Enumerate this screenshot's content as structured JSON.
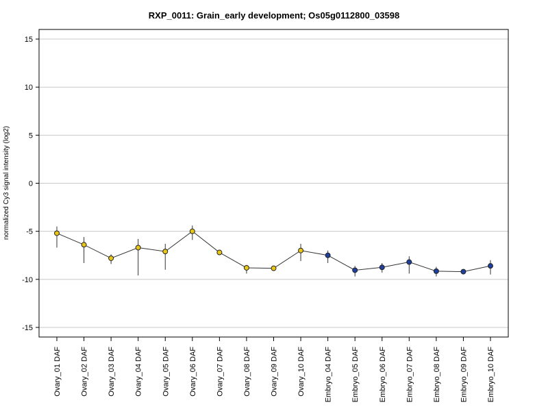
{
  "chart_data": {
    "type": "line",
    "title": "RXP_0011: Grain_early development; Os05g0112800_03598",
    "xlabel": "",
    "ylabel": "normalized Cy3 signal intensity (log2)",
    "ylim": [
      -16,
      16
    ],
    "yticks": [
      -15,
      -10,
      -5,
      0,
      5,
      10,
      15
    ],
    "grid": "horizontal",
    "categories": [
      "Ovary_01 DAF",
      "Ovary_02 DAF",
      "Ovary_03 DAF",
      "Ovary_04 DAF",
      "Ovary_05 DAF",
      "Ovary_06 DAF",
      "Ovary_07 DAF",
      "Ovary_08 DAF",
      "Ovary_09 DAF",
      "Ovary_10 DAF",
      "Embryo_04 DAF",
      "Embryo_05 DAF",
      "Embryo_06 DAF",
      "Embryo_07 DAF",
      "Embryo_08 DAF",
      "Embryo_09 DAF",
      "Embryo_10 DAF"
    ],
    "values": [
      -5.2,
      -6.4,
      -7.8,
      -6.7,
      -7.1,
      -5.0,
      -7.2,
      -8.8,
      -8.85,
      -7.0,
      -7.5,
      -9.05,
      -8.75,
      -8.2,
      -9.15,
      -9.2,
      -8.6
    ],
    "error_low": [
      -6.7,
      -8.3,
      -8.4,
      -9.6,
      -9.0,
      -5.9,
      -7.3,
      -9.4,
      -8.9,
      -8.1,
      -8.3,
      -9.7,
      -9.3,
      -9.4,
      -9.7,
      -9.3,
      -9.5
    ],
    "error_high": [
      -4.5,
      -5.6,
      -7.4,
      -5.8,
      -6.3,
      -4.4,
      -7.0,
      -8.5,
      -8.8,
      -6.3,
      -7.0,
      -8.6,
      -8.3,
      -7.6,
      -8.7,
      -9.1,
      -8.0
    ],
    "point_colors": [
      "#e6c619",
      "#e6c619",
      "#e6c619",
      "#e6c619",
      "#e6c619",
      "#e6c619",
      "#e6c619",
      "#e6c619",
      "#e6c619",
      "#e6c619",
      "#1f3f9e",
      "#1f3f9e",
      "#1f3f9e",
      "#1f3f9e",
      "#1f3f9e",
      "#1f3f9e",
      "#1f3f9e"
    ],
    "line_color": "#333333",
    "grid_color": "#c8c8c8"
  }
}
